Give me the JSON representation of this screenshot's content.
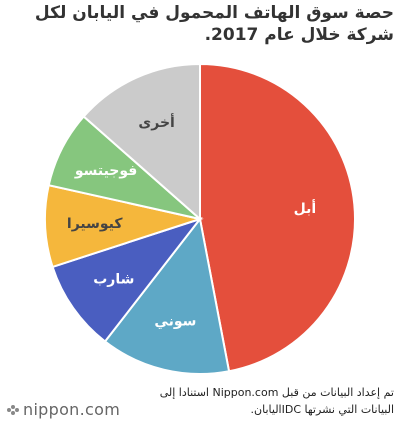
{
  "chart_data": {
    "type": "pie",
    "title": "حصة سوق الهاتف المحمول في اليابان لكل شركة خلال عام 2017.",
    "categories": [
      "أبل",
      "سوني",
      "شارب",
      "كيوسيرا",
      "فوجيتسو",
      "أخرى"
    ],
    "values": [
      47,
      13.5,
      9.5,
      8.5,
      8,
      13.5
    ],
    "colors": [
      "#e44f3c",
      "#5ea8c6",
      "#4a5ec0",
      "#f5b73c",
      "#86c67e",
      "#cbcbcb"
    ],
    "source": "تم إعداد البيانات من قبل Nippon.com استنادا إلى البيانات التي نشرتها IDCاليابان.",
    "logo": "nippon.com"
  }
}
